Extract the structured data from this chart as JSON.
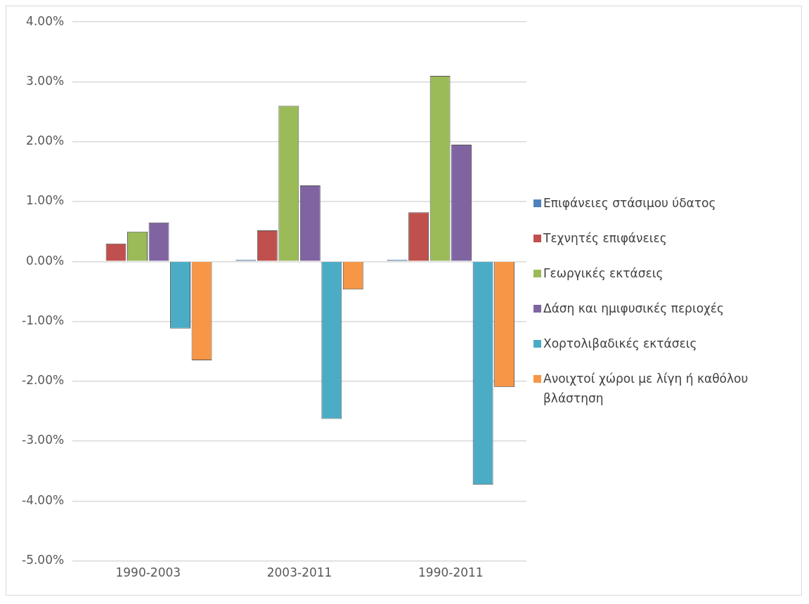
{
  "chart_data": {
    "type": "bar",
    "categories": [
      "1990-2003",
      "2003-2011",
      "1990-2011"
    ],
    "series": [
      {
        "name": "Επιφάνειες στάσιμου ύδατος",
        "color": "#4f81bd",
        "values": [
          0,
          0.03,
          0.03
        ]
      },
      {
        "name": "Τεχνητές επιφάνειες",
        "color": "#c0504d",
        "values": [
          0.3,
          0.52,
          0.82
        ]
      },
      {
        "name": "Γεωργικές εκτάσεις",
        "color": "#9bbb59",
        "values": [
          0.5,
          2.6,
          3.1
        ]
      },
      {
        "name": "Δάση και ημιφυσικές περιοχές",
        "color": "#8064a2",
        "values": [
          0.65,
          1.27,
          1.95
        ]
      },
      {
        "name": "Χορτολιβαδικές εκτάσεις",
        "color": "#4bacc6",
        "values": [
          -1.12,
          -2.63,
          -3.73
        ]
      },
      {
        "name": "Ανοιχτοί χώροι με λίγη ή καθόλου βλάστηση",
        "color": "#f79646",
        "values": [
          -1.65,
          -0.47,
          -2.1
        ]
      }
    ],
    "ylim": [
      -5,
      4
    ],
    "yticks": [
      {
        "value": -5,
        "label": "-5.00%"
      },
      {
        "value": -4,
        "label": "-4.00%"
      },
      {
        "value": -3,
        "label": "-3.00%"
      },
      {
        "value": -2,
        "label": "-2.00%"
      },
      {
        "value": -1,
        "label": "-1.00%"
      },
      {
        "value": 0,
        "label": "0.00%"
      },
      {
        "value": 1,
        "label": "1.00%"
      },
      {
        "value": 2,
        "label": "2.00%"
      },
      {
        "value": 3,
        "label": "3.00%"
      },
      {
        "value": 4,
        "label": "4.00%"
      }
    ],
    "grid": "y",
    "legend": "right"
  }
}
